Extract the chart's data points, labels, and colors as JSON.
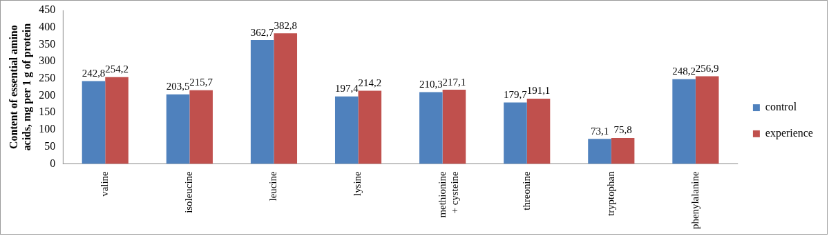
{
  "chart_data": {
    "type": "bar",
    "ylabel": "Content of essential amino acids, mg per 1 g of protein",
    "categories": [
      "valine",
      "isoleucine",
      "leucine",
      "lysine",
      "methionine + cysteine",
      "threonine",
      "tryptophan",
      "phenylalanine"
    ],
    "series": [
      {
        "name": "control",
        "color": "#4f81bd",
        "values": [
          242.8,
          203.5,
          362.7,
          197.4,
          210.3,
          179.7,
          73.1,
          248.2
        ],
        "value_labels": [
          "242,8",
          "203,5",
          "362,7",
          "197,4",
          "210,3",
          "179,7",
          "73,1",
          "248,2"
        ]
      },
      {
        "name": "experience",
        "color": "#c0504d",
        "values": [
          254.2,
          215.7,
          382.8,
          214.2,
          217.1,
          191.1,
          75.8,
          256.9
        ],
        "value_labels": [
          "254,2",
          "215,7",
          "382,8",
          "214,2",
          "217,1",
          "191,1",
          "75,8",
          "256,9"
        ]
      }
    ],
    "ylim": [
      0,
      450
    ],
    "yticks": [
      0,
      50,
      100,
      150,
      200,
      250,
      300,
      350,
      400,
      450
    ],
    "grid": false,
    "legend": "right"
  }
}
